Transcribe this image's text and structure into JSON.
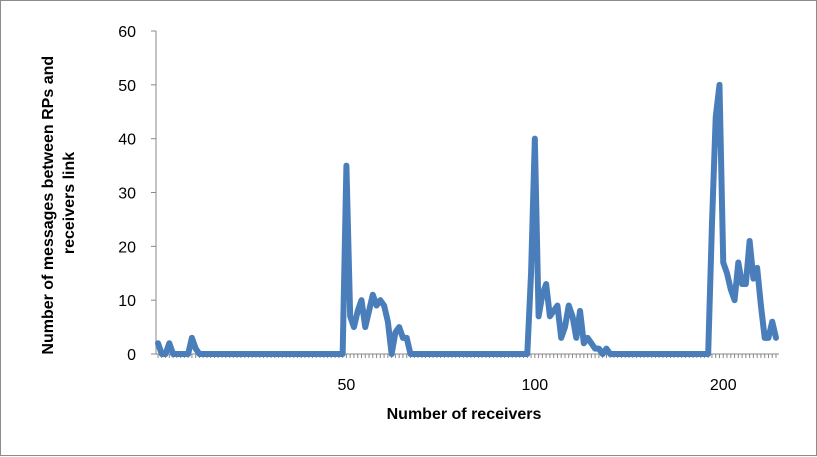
{
  "chart_data": {
    "type": "line",
    "title": "",
    "xlabel": "Number of receivers",
    "ylabel_lines": [
      "Number of messages between RPs and",
      "receivers link"
    ],
    "ylim": [
      0,
      60
    ],
    "yticks": [
      0,
      10,
      20,
      30,
      40,
      50,
      60
    ],
    "xtick_labels": [
      {
        "index": 50,
        "label": "50"
      },
      {
        "index": 100,
        "label": "100"
      },
      {
        "index": 150,
        "label": "200"
      }
    ],
    "grid": false,
    "legend": "none",
    "color": "#4a7ebb",
    "series": [
      {
        "values": [
          2,
          0,
          0,
          2,
          0,
          0,
          0,
          0,
          0,
          3,
          1,
          0,
          0,
          0,
          0,
          0,
          0,
          0,
          0,
          0,
          0,
          0,
          0,
          0,
          0,
          0,
          0,
          0,
          0,
          0,
          0,
          0,
          0,
          0,
          0,
          0,
          0,
          0,
          0,
          0,
          0,
          0,
          0,
          0,
          0,
          0,
          0,
          0,
          0,
          0,
          35,
          7,
          5,
          8,
          10,
          5,
          8,
          11,
          9,
          10,
          9,
          6,
          0,
          4,
          5,
          3,
          3,
          0,
          0,
          0,
          0,
          0,
          0,
          0,
          0,
          0,
          0,
          0,
          0,
          0,
          0,
          0,
          0,
          0,
          0,
          0,
          0,
          0,
          0,
          0,
          0,
          0,
          0,
          0,
          0,
          0,
          0,
          0,
          0,
          15,
          40,
          7,
          11,
          13,
          7,
          8,
          9,
          3,
          5,
          9,
          7,
          3,
          8,
          2,
          3,
          2,
          1,
          1,
          0,
          1,
          0,
          0,
          0,
          0,
          0,
          0,
          0,
          0,
          0,
          0,
          0,
          0,
          0,
          0,
          0,
          0,
          0,
          0,
          0,
          0,
          0,
          0,
          0,
          0,
          0,
          0,
          0,
          24,
          44,
          50,
          17,
          15,
          12,
          10,
          17,
          13,
          13,
          21,
          14,
          16,
          9,
          3,
          3,
          6,
          3
        ]
      }
    ]
  }
}
